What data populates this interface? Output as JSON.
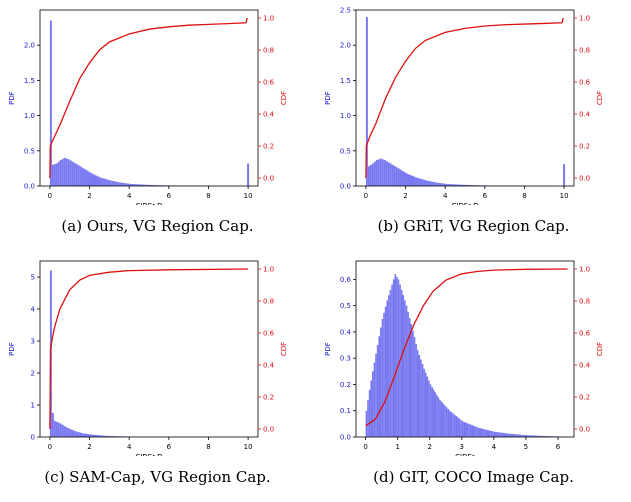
{
  "colors": {
    "pdf": "#7878f0",
    "pdf_axis": "#1a1ad0",
    "cdf": "#dd1010",
    "axis": "#000000"
  },
  "chart_data": [
    {
      "id": "a",
      "type": "bar",
      "caption": "(a) Ours, VG Region Cap.",
      "xlabel": "CIDEr-D",
      "ylabel_left": "PDF",
      "ylabel_right": "CDF",
      "xlim": [
        -0.5,
        10.5
      ],
      "xticks": [
        0,
        2,
        4,
        6,
        8,
        10
      ],
      "ylim_left": [
        0,
        2.5
      ],
      "yticks_left": [
        0.0,
        0.5,
        1.0,
        1.5,
        2.0
      ],
      "ylim_right": [
        -0.05,
        1.05
      ],
      "yticks_right": [
        0.0,
        0.2,
        0.4,
        0.6,
        0.8,
        1.0
      ],
      "pdf_series": {
        "name": "PDF",
        "bin_width": 0.1,
        "spikes": [
          {
            "x": 0.0,
            "value": 2.35
          },
          {
            "x": 9.95,
            "value": 0.32
          }
        ],
        "points": [
          [
            0.1,
            0.3
          ],
          [
            0.3,
            0.32
          ],
          [
            0.5,
            0.37
          ],
          [
            0.7,
            0.4
          ],
          [
            0.9,
            0.38
          ],
          [
            1.2,
            0.33
          ],
          [
            1.6,
            0.26
          ],
          [
            2.0,
            0.19
          ],
          [
            2.5,
            0.12
          ],
          [
            3.0,
            0.08
          ],
          [
            3.5,
            0.05
          ],
          [
            4.0,
            0.03
          ],
          [
            5.0,
            0.015
          ],
          [
            6.0,
            0.008
          ],
          [
            7.0,
            0.005
          ],
          [
            8.0,
            0.003
          ],
          [
            9.5,
            0.002
          ]
        ]
      },
      "cdf_series": {
        "name": "CDF",
        "points": [
          [
            0.0,
            0.0
          ],
          [
            0.02,
            0.2
          ],
          [
            0.2,
            0.25
          ],
          [
            0.5,
            0.33
          ],
          [
            1.0,
            0.48
          ],
          [
            1.5,
            0.62
          ],
          [
            2.0,
            0.72
          ],
          [
            2.5,
            0.8
          ],
          [
            3.0,
            0.85
          ],
          [
            4.0,
            0.9
          ],
          [
            5.0,
            0.93
          ],
          [
            6.0,
            0.945
          ],
          [
            7.0,
            0.955
          ],
          [
            8.0,
            0.96
          ],
          [
            9.0,
            0.965
          ],
          [
            9.9,
            0.97
          ],
          [
            9.95,
            1.0
          ]
        ]
      }
    },
    {
      "id": "b",
      "type": "bar",
      "caption": "(b) GRiT, VG Region Cap.",
      "xlabel": "CIDEr-D",
      "ylabel_left": "PDF",
      "ylabel_right": "CDF",
      "xlim": [
        -0.5,
        10.5
      ],
      "xticks": [
        0,
        2,
        4,
        6,
        8,
        10
      ],
      "ylim_left": [
        0,
        2.5
      ],
      "yticks_left": [
        0.0,
        0.5,
        1.0,
        1.5,
        2.0,
        2.5
      ],
      "ylim_right": [
        -0.05,
        1.05
      ],
      "yticks_right": [
        0.0,
        0.2,
        0.4,
        0.6,
        0.8,
        1.0
      ],
      "pdf_series": {
        "name": "PDF",
        "bin_width": 0.1,
        "spikes": [
          {
            "x": 0.0,
            "value": 2.4
          },
          {
            "x": 9.95,
            "value": 0.31
          }
        ],
        "points": [
          [
            0.1,
            0.28
          ],
          [
            0.3,
            0.32
          ],
          [
            0.5,
            0.37
          ],
          [
            0.7,
            0.39
          ],
          [
            0.9,
            0.37
          ],
          [
            1.2,
            0.32
          ],
          [
            1.6,
            0.25
          ],
          [
            2.0,
            0.18
          ],
          [
            2.5,
            0.12
          ],
          [
            3.0,
            0.08
          ],
          [
            3.5,
            0.05
          ],
          [
            4.0,
            0.03
          ],
          [
            5.0,
            0.015
          ],
          [
            6.0,
            0.008
          ],
          [
            7.0,
            0.005
          ],
          [
            8.0,
            0.003
          ],
          [
            9.5,
            0.002
          ]
        ]
      },
      "cdf_series": {
        "name": "CDF",
        "points": [
          [
            0.0,
            0.0
          ],
          [
            0.02,
            0.2
          ],
          [
            0.2,
            0.26
          ],
          [
            0.5,
            0.34
          ],
          [
            1.0,
            0.5
          ],
          [
            1.5,
            0.63
          ],
          [
            2.0,
            0.73
          ],
          [
            2.5,
            0.81
          ],
          [
            3.0,
            0.86
          ],
          [
            4.0,
            0.91
          ],
          [
            5.0,
            0.935
          ],
          [
            6.0,
            0.95
          ],
          [
            7.0,
            0.958
          ],
          [
            8.0,
            0.962
          ],
          [
            9.0,
            0.966
          ],
          [
            9.9,
            0.97
          ],
          [
            9.95,
            1.0
          ]
        ]
      }
    },
    {
      "id": "c",
      "type": "bar",
      "caption": "(c) SAM-Cap, VG Region Cap.",
      "xlabel": "CIDEr-D",
      "ylabel_left": "PDF",
      "ylabel_right": "CDF",
      "xlim": [
        -0.5,
        10.5
      ],
      "xticks": [
        0,
        2,
        4,
        6,
        8,
        10
      ],
      "ylim_left": [
        0,
        5.5
      ],
      "yticks_left": [
        0,
        1,
        2,
        3,
        4,
        5
      ],
      "ylim_right": [
        -0.05,
        1.05
      ],
      "yticks_right": [
        0.0,
        0.2,
        0.4,
        0.6,
        0.8,
        1.0
      ],
      "pdf_series": {
        "name": "PDF",
        "bin_width": 0.1,
        "spikes": [
          {
            "x": 0.0,
            "value": 5.2
          },
          {
            "x": 0.1,
            "value": 0.75
          }
        ],
        "points": [
          [
            0.2,
            0.5
          ],
          [
            0.4,
            0.45
          ],
          [
            0.6,
            0.38
          ],
          [
            0.8,
            0.3
          ],
          [
            1.0,
            0.24
          ],
          [
            1.3,
            0.17
          ],
          [
            1.6,
            0.12
          ],
          [
            2.0,
            0.08
          ],
          [
            2.5,
            0.05
          ],
          [
            3.0,
            0.03
          ],
          [
            4.0,
            0.015
          ],
          [
            5.0,
            0.008
          ],
          [
            6.0,
            0.004
          ],
          [
            8.0,
            0.002
          ]
        ]
      },
      "cdf_series": {
        "name": "CDF",
        "points": [
          [
            0.0,
            0.0
          ],
          [
            0.03,
            0.5
          ],
          [
            0.2,
            0.62
          ],
          [
            0.5,
            0.75
          ],
          [
            1.0,
            0.87
          ],
          [
            1.5,
            0.93
          ],
          [
            2.0,
            0.96
          ],
          [
            3.0,
            0.98
          ],
          [
            4.0,
            0.99
          ],
          [
            6.0,
            0.995
          ],
          [
            10.0,
            1.0
          ]
        ]
      }
    },
    {
      "id": "d",
      "type": "bar",
      "caption": "(d) GIT, COCO Image Cap.",
      "xlabel": "CIDEr",
      "ylabel_left": "PDF",
      "ylabel_right": "CDF",
      "xlim": [
        -0.3,
        6.5
      ],
      "xticks": [
        0,
        1,
        2,
        3,
        4,
        5,
        6
      ],
      "ylim_left": [
        0,
        0.67
      ],
      "yticks_left": [
        0.0,
        0.1,
        0.2,
        0.3,
        0.4,
        0.5,
        0.6
      ],
      "ylim_right": [
        -0.05,
        1.05
      ],
      "yticks_right": [
        0.0,
        0.2,
        0.4,
        0.6,
        0.8,
        1.0
      ],
      "pdf_series": {
        "name": "PDF",
        "bin_width": 0.05,
        "spikes": [],
        "points": [
          [
            0.0,
            0.1
          ],
          [
            0.1,
            0.18
          ],
          [
            0.2,
            0.25
          ],
          [
            0.35,
            0.35
          ],
          [
            0.5,
            0.45
          ],
          [
            0.65,
            0.52
          ],
          [
            0.8,
            0.58
          ],
          [
            0.9,
            0.62
          ],
          [
            1.0,
            0.6
          ],
          [
            1.1,
            0.56
          ],
          [
            1.25,
            0.5
          ],
          [
            1.4,
            0.43
          ],
          [
            1.6,
            0.33
          ],
          [
            1.8,
            0.26
          ],
          [
            2.0,
            0.2
          ],
          [
            2.3,
            0.14
          ],
          [
            2.6,
            0.1
          ],
          [
            3.0,
            0.06
          ],
          [
            3.5,
            0.035
          ],
          [
            4.0,
            0.02
          ],
          [
            4.5,
            0.012
          ],
          [
            5.0,
            0.007
          ],
          [
            5.5,
            0.004
          ],
          [
            6.0,
            0.002
          ],
          [
            6.3,
            0.001
          ]
        ]
      },
      "cdf_series": {
        "name": "CDF",
        "points": [
          [
            0.0,
            0.02
          ],
          [
            0.3,
            0.06
          ],
          [
            0.6,
            0.17
          ],
          [
            0.9,
            0.33
          ],
          [
            1.2,
            0.5
          ],
          [
            1.5,
            0.65
          ],
          [
            1.8,
            0.77
          ],
          [
            2.1,
            0.86
          ],
          [
            2.5,
            0.93
          ],
          [
            3.0,
            0.97
          ],
          [
            3.5,
            0.985
          ],
          [
            4.0,
            0.993
          ],
          [
            5.0,
            0.998
          ],
          [
            6.3,
            1.0
          ]
        ]
      }
    }
  ]
}
